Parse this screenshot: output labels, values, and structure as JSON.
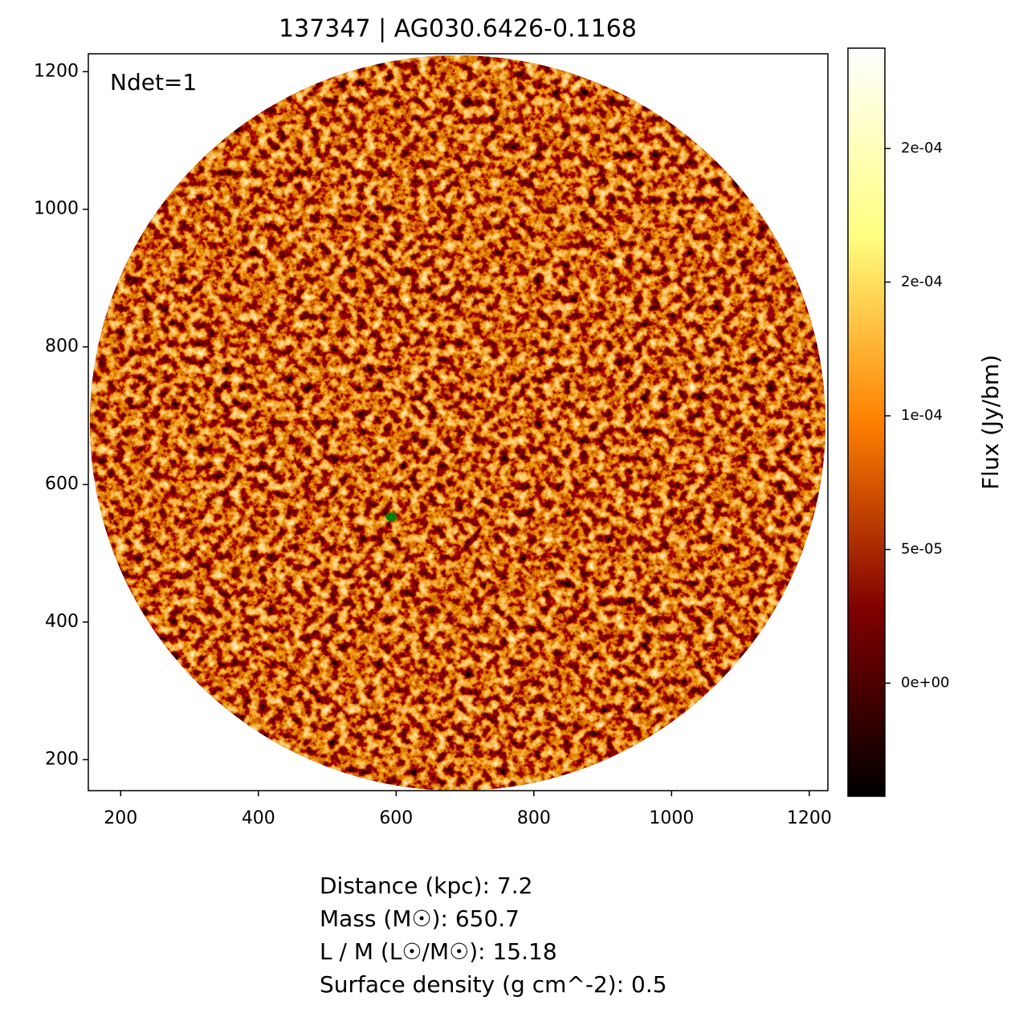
{
  "chart_data": {
    "type": "image",
    "title": "137347 | AG030.6426-0.1168",
    "xlim": [
      153,
      1227
    ],
    "ylim": [
      155,
      1226
    ],
    "xticks": [
      200,
      400,
      600,
      800,
      1000,
      1200
    ],
    "yticks": [
      200,
      400,
      600,
      800,
      1000,
      1200
    ],
    "annotation": "Ndet=1",
    "points": {
      "x": [
        593
      ],
      "y": [
        553
      ],
      "color": "#008000"
    },
    "colorbar": {
      "label": "Flux (Jy/bm)",
      "lim": [
        -4.23e-05,
        0.0002375
      ],
      "ticks": [
        {
          "value": 0,
          "label": "0e+00"
        },
        {
          "value": 5e-05,
          "label": "5e-05"
        },
        {
          "value": 0.0001,
          "label": "1e-04"
        },
        {
          "value": 0.00015,
          "label": "2e-04"
        },
        {
          "value": 0.0002,
          "label": "2e-04"
        }
      ]
    },
    "info_lines": [
      "Distance (kpc): 7.2",
      "Mass (M☉): 650.7",
      "L / M (L☉/M☉): 15.18",
      "Surface density (g cm^-2): 0.5"
    ]
  }
}
